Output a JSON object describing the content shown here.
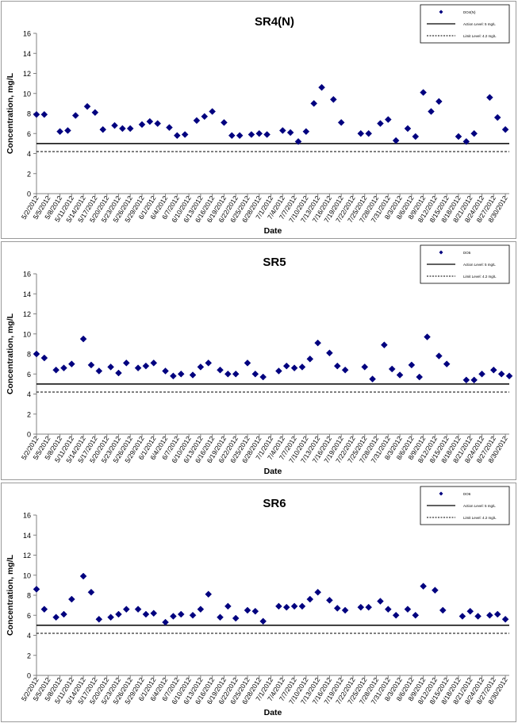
{
  "chart_data": [
    {
      "type": "scatter",
      "title": "SR4(N)",
      "xlabel": "Date",
      "ylabel": "Concentration, mg/L",
      "ylim": [
        0,
        16
      ],
      "yticks": [
        0,
        2,
        4,
        6,
        8,
        10,
        12,
        14,
        16
      ],
      "grid": false,
      "legend_position": "top-right",
      "legend": {
        "series": "DO4(N)",
        "action": "Action Level: 5 mg/L",
        "limit": "Limit Level: 4.2 mg/L"
      },
      "action_level": 5,
      "limit_level": 4.2,
      "tick_labels": [
        "5/2/2012",
        "5/5/2012",
        "5/8/2012",
        "5/11/2012",
        "5/14/2012",
        "5/17/2012",
        "5/20/2012",
        "5/23/2012",
        "5/26/2012",
        "5/29/2012",
        "6/1/2012",
        "6/4/2012",
        "6/7/2012",
        "6/10/2012",
        "6/13/2012",
        "6/16/2012",
        "6/19/2012",
        "6/22/2012",
        "6/25/2012",
        "6/28/2012",
        "7/1/2012",
        "7/4/2012",
        "7/7/2012",
        "7/10/2012",
        "7/13/2012",
        "7/16/2012",
        "7/19/2012",
        "7/22/2012",
        "7/25/2012",
        "7/28/2012",
        "7/31/2012",
        "8/3/2012",
        "8/6/2012",
        "8/9/2012",
        "8/12/2012",
        "8/15/2012",
        "8/18/2012",
        "8/21/2012",
        "8/24/2012",
        "8/27/2012",
        "8/30/2012"
      ],
      "x": [
        "2012-05-02",
        "2012-05-03",
        "2012-05-05",
        "2012-05-06",
        "2012-05-07",
        "2012-05-08",
        "2012-05-09",
        "2012-05-10",
        "2012-05-11",
        "2012-05-12",
        "2012-05-13",
        "2012-05-14",
        "2012-05-15",
        "2012-05-16",
        "2012-05-17",
        "2012-05-18",
        "2012-05-19",
        "2012-05-21",
        "2012-05-22",
        "2012-05-23",
        "2012-05-24",
        "2012-05-25",
        "2012-05-26",
        "2012-05-27",
        "2012-05-28",
        "2012-05-29",
        "2012-05-30",
        "2012-05-31",
        "2012-06-01",
        "2012-06-02",
        "2012-06-03",
        "2012-06-04",
        "2012-06-05",
        "2012-06-06",
        "2012-06-07",
        "2012-06-08",
        "2012-06-09",
        "2012-06-11",
        "2012-06-12",
        "2012-06-13",
        "2012-06-14",
        "2012-06-15",
        "2012-06-16",
        "2012-06-17",
        "2012-06-18",
        "2012-06-19",
        "2012-06-20",
        "2012-06-22",
        "2012-06-23",
        "2012-06-24",
        "2012-06-25",
        "2012-06-26",
        "2012-06-27",
        "2012-06-28",
        "2012-06-29",
        "2012-06-30",
        "2012-07-02",
        "2012-07-03",
        "2012-07-04",
        "2012-07-05",
        "2012-07-06",
        "2012-07-07",
        "2012-07-08",
        "2012-07-09",
        "2012-07-10",
        "2012-07-11",
        "2012-07-12",
        "2012-07-13",
        "2012-07-14",
        "2012-07-15",
        "2012-07-16",
        "2012-07-17",
        "2012-07-18",
        "2012-07-19",
        "2012-07-20",
        "2012-07-21",
        "2012-07-23",
        "2012-07-24",
        "2012-07-25",
        "2012-07-26",
        "2012-07-27",
        "2012-07-28",
        "2012-07-29",
        "2012-07-30",
        "2012-07-31",
        "2012-08-01",
        "2012-08-02",
        "2012-08-03",
        "2012-08-04",
        "2012-08-05",
        "2012-08-06",
        "2012-08-07",
        "2012-08-08",
        "2012-08-09",
        "2012-08-10",
        "2012-08-11",
        "2012-08-12",
        "2012-08-13",
        "2012-08-14",
        "2012-08-15",
        "2012-08-16",
        "2012-08-17",
        "2012-08-18",
        "2012-08-19",
        "2012-08-20",
        "2012-08-21",
        "2012-08-22",
        "2012-08-23",
        "2012-08-24",
        "2012-08-25",
        "2012-08-26",
        "2012-08-27",
        "2012-08-28",
        "2012-08-29",
        "2012-08-30",
        "2012-08-31"
      ],
      "series": [
        {
          "name": "DO4(N)",
          "x": [
            "2012-05-02",
            "2012-05-04",
            "2012-05-08",
            "2012-05-10",
            "2012-05-12",
            "2012-05-15",
            "2012-05-17",
            "2012-05-19",
            "2012-05-22",
            "2012-05-24",
            "2012-05-26",
            "2012-05-29",
            "2012-05-31",
            "2012-06-02",
            "2012-06-05",
            "2012-06-07",
            "2012-06-09",
            "2012-06-12",
            "2012-06-14",
            "2012-06-16",
            "2012-06-19",
            "2012-06-21",
            "2012-06-23",
            "2012-06-26",
            "2012-06-28",
            "2012-06-30",
            "2012-07-04",
            "2012-07-06",
            "2012-07-08",
            "2012-07-10",
            "2012-07-12",
            "2012-07-14",
            "2012-07-17",
            "2012-07-19",
            "2012-07-24",
            "2012-07-26",
            "2012-07-29",
            "2012-07-31",
            "2012-08-02",
            "2012-08-05",
            "2012-08-07",
            "2012-08-09",
            "2012-08-11",
            "2012-08-13",
            "2012-08-18",
            "2012-08-20",
            "2012-08-22",
            "2012-08-26",
            "2012-08-28",
            "2012-08-30"
          ],
          "values": [
            7.9,
            7.9,
            6.2,
            6.3,
            7.8,
            8.7,
            8.1,
            6.4,
            6.8,
            6.5,
            6.5,
            6.9,
            7.2,
            7.0,
            6.6,
            5.8,
            5.9,
            7.3,
            7.7,
            8.2,
            7.1,
            5.8,
            5.8,
            5.9,
            6.0,
            5.9,
            6.3,
            6.1,
            5.2,
            6.2,
            9.0,
            10.6,
            9.4,
            7.1,
            6.0,
            6.0,
            7.0,
            7.4,
            5.3,
            6.5,
            5.7,
            10.1,
            8.2,
            9.2,
            5.7,
            5.2,
            6.0,
            9.6,
            7.6,
            6.4
          ]
        }
      ]
    },
    {
      "type": "scatter",
      "title": "SR5",
      "xlabel": "Date",
      "ylabel": "Concentration, mg/L",
      "ylim": [
        0,
        16
      ],
      "yticks": [
        0,
        2,
        4,
        6,
        8,
        10,
        12,
        14,
        16
      ],
      "grid": false,
      "legend_position": "top-right",
      "legend": {
        "series": "DO5",
        "action": "Action Level: 5 mg/L",
        "limit": "Limit Level: 4.2 mg/L"
      },
      "action_level": 5,
      "limit_level": 4.2,
      "tick_labels": [
        "5/2/2012",
        "5/5/2012",
        "5/8/2012",
        "5/11/2012",
        "5/14/2012",
        "5/17/2012",
        "5/20/2012",
        "5/23/2012",
        "5/26/2012",
        "5/29/2012",
        "6/1/2012",
        "6/4/2012",
        "6/7/2012",
        "6/10/2012",
        "6/13/2012",
        "6/16/2012",
        "6/19/2012",
        "6/22/2012",
        "6/25/2012",
        "6/28/2012",
        "7/1/2012",
        "7/4/2012",
        "7/7/2012",
        "7/10/2012",
        "7/13/2012",
        "7/16/2012",
        "7/19/2012",
        "7/22/2012",
        "7/25/2012",
        "7/28/2012",
        "7/31/2012",
        "8/3/2012",
        "8/6/2012",
        "8/9/2012",
        "8/12/2012",
        "8/15/2012",
        "8/18/2012",
        "8/21/2012",
        "8/24/2012",
        "8/27/2012",
        "8/30/2012"
      ],
      "x": [
        "2012-05-02",
        "2012-05-03",
        "2012-05-05",
        "2012-05-06",
        "2012-05-07",
        "2012-05-08",
        "2012-05-09",
        "2012-05-10",
        "2012-05-11",
        "2012-05-12",
        "2012-05-13",
        "2012-05-14",
        "2012-05-15",
        "2012-05-16",
        "2012-05-17",
        "2012-05-18",
        "2012-05-19",
        "2012-05-21",
        "2012-05-22",
        "2012-05-23",
        "2012-05-24",
        "2012-05-25",
        "2012-05-26",
        "2012-05-27",
        "2012-05-28",
        "2012-05-29",
        "2012-05-30",
        "2012-05-31",
        "2012-06-01",
        "2012-06-02",
        "2012-06-03",
        "2012-06-04",
        "2012-06-05",
        "2012-06-06",
        "2012-06-07",
        "2012-06-08",
        "2012-06-09",
        "2012-06-11",
        "2012-06-12",
        "2012-06-13",
        "2012-06-14",
        "2012-06-15",
        "2012-06-16",
        "2012-06-17",
        "2012-06-18",
        "2012-06-19",
        "2012-06-20",
        "2012-06-22",
        "2012-06-23",
        "2012-06-24",
        "2012-06-25",
        "2012-06-26",
        "2012-06-27",
        "2012-06-28",
        "2012-06-29",
        "2012-06-30",
        "2012-07-02",
        "2012-07-03",
        "2012-07-04",
        "2012-07-05",
        "2012-07-06",
        "2012-07-07",
        "2012-07-08",
        "2012-07-09",
        "2012-07-10",
        "2012-07-11",
        "2012-07-12",
        "2012-07-13",
        "2012-07-14",
        "2012-07-15",
        "2012-07-16",
        "2012-07-17",
        "2012-07-18",
        "2012-07-19",
        "2012-07-20",
        "2012-07-21",
        "2012-07-23",
        "2012-07-24",
        "2012-07-25",
        "2012-07-26",
        "2012-07-27",
        "2012-07-28",
        "2012-07-29",
        "2012-07-30",
        "2012-07-31",
        "2012-08-01",
        "2012-08-02",
        "2012-08-03",
        "2012-08-04",
        "2012-08-05",
        "2012-08-06",
        "2012-08-07",
        "2012-08-08",
        "2012-08-09",
        "2012-08-10",
        "2012-08-11",
        "2012-08-12",
        "2012-08-13",
        "2012-08-14",
        "2012-08-15",
        "2012-08-16",
        "2012-08-17",
        "2012-08-18",
        "2012-08-19",
        "2012-08-20",
        "2012-08-21",
        "2012-08-22",
        "2012-08-23",
        "2012-08-24",
        "2012-08-25",
        "2012-08-26",
        "2012-08-27",
        "2012-08-28",
        "2012-08-29",
        "2012-08-30",
        "2012-08-31"
      ],
      "series": [
        {
          "name": "DO5",
          "x": [
            "2012-05-02",
            "2012-05-04",
            "2012-05-07",
            "2012-05-09",
            "2012-05-11",
            "2012-05-14",
            "2012-05-16",
            "2012-05-18",
            "2012-05-21",
            "2012-05-23",
            "2012-05-25",
            "2012-05-28",
            "2012-05-30",
            "2012-06-01",
            "2012-06-04",
            "2012-06-06",
            "2012-06-08",
            "2012-06-11",
            "2012-06-13",
            "2012-06-15",
            "2012-06-18",
            "2012-06-20",
            "2012-06-22",
            "2012-06-25",
            "2012-06-27",
            "2012-06-29",
            "2012-07-03",
            "2012-07-05",
            "2012-07-07",
            "2012-07-09",
            "2012-07-11",
            "2012-07-13",
            "2012-07-16",
            "2012-07-18",
            "2012-07-20",
            "2012-07-25",
            "2012-07-27",
            "2012-07-30",
            "2012-08-01",
            "2012-08-03",
            "2012-08-06",
            "2012-08-08",
            "2012-08-10",
            "2012-08-13",
            "2012-08-15",
            "2012-08-20",
            "2012-08-22",
            "2012-08-24",
            "2012-08-27",
            "2012-08-29",
            "2012-08-31"
          ],
          "values": [
            8.0,
            7.6,
            6.4,
            6.6,
            7.0,
            9.5,
            6.9,
            6.3,
            6.7,
            6.1,
            7.1,
            6.6,
            6.8,
            7.1,
            6.3,
            5.8,
            6.0,
            5.9,
            6.7,
            7.1,
            6.4,
            6.0,
            6.0,
            7.1,
            6.0,
            5.7,
            6.3,
            6.8,
            6.6,
            6.7,
            7.5,
            9.1,
            8.1,
            6.8,
            6.4,
            6.7,
            5.5,
            8.9,
            6.5,
            5.9,
            6.9,
            5.7,
            9.7,
            7.8,
            7.0,
            5.4,
            5.4,
            6.0,
            6.4,
            6.0,
            5.8
          ]
        }
      ]
    },
    {
      "type": "scatter",
      "title": "SR6",
      "xlabel": "Date",
      "ylabel": "Concentration, mg/L",
      "ylim": [
        0,
        16
      ],
      "yticks": [
        0,
        2,
        4,
        6,
        8,
        10,
        12,
        14,
        16
      ],
      "grid": false,
      "legend_position": "top-right",
      "legend": {
        "series": "DO6",
        "action": "Action Level: 5 mg/L",
        "limit": "Limit Level: 4.2 mg/L"
      },
      "action_level": 5,
      "limit_level": 4.2,
      "tick_labels": [
        "5/2/2012",
        "5/5/2012",
        "5/8/2012",
        "5/11/2012",
        "5/14/2012",
        "5/17/2012",
        "5/20/2012",
        "5/23/2012",
        "5/26/2012",
        "5/29/2012",
        "6/1/2012",
        "6/4/2012",
        "6/7/2012",
        "6/10/2012",
        "6/13/2012",
        "6/16/2012",
        "6/19/2012",
        "6/22/2012",
        "6/25/2012",
        "6/28/2012",
        "7/1/2012",
        "7/4/2012",
        "7/7/2012",
        "7/10/2012",
        "7/13/2012",
        "7/16/2012",
        "7/19/2012",
        "7/22/2012",
        "7/25/2012",
        "7/28/2012",
        "7/31/2012",
        "8/3/2012",
        "8/6/2012",
        "8/9/2012",
        "8/12/2012",
        "8/15/2012",
        "8/18/2012",
        "8/21/2012",
        "8/24/2012",
        "8/27/2012",
        "8/30/2012"
      ],
      "x": [
        "2012-05-02",
        "2012-05-03",
        "2012-05-05",
        "2012-05-06",
        "2012-05-07",
        "2012-05-08",
        "2012-05-09",
        "2012-05-10",
        "2012-05-11",
        "2012-05-12",
        "2012-05-13",
        "2012-05-14",
        "2012-05-15",
        "2012-05-16",
        "2012-05-17",
        "2012-05-18",
        "2012-05-19",
        "2012-05-21",
        "2012-05-22",
        "2012-05-23",
        "2012-05-24",
        "2012-05-25",
        "2012-05-26",
        "2012-05-27",
        "2012-05-28",
        "2012-05-29",
        "2012-05-30",
        "2012-05-31",
        "2012-06-01",
        "2012-06-02",
        "2012-06-03",
        "2012-06-04",
        "2012-06-05",
        "2012-06-06",
        "2012-06-07",
        "2012-06-08",
        "2012-06-09",
        "2012-06-11",
        "2012-06-12",
        "2012-06-13",
        "2012-06-14",
        "2012-06-15",
        "2012-06-16",
        "2012-06-17",
        "2012-06-18",
        "2012-06-19",
        "2012-06-20",
        "2012-06-22",
        "2012-06-23",
        "2012-06-24",
        "2012-06-25",
        "2012-06-26",
        "2012-06-27",
        "2012-06-28",
        "2012-06-29",
        "2012-06-30",
        "2012-07-02",
        "2012-07-03",
        "2012-07-04",
        "2012-07-05",
        "2012-07-06",
        "2012-07-07",
        "2012-07-08",
        "2012-07-09",
        "2012-07-10",
        "2012-07-11",
        "2012-07-12",
        "2012-07-13",
        "2012-07-14",
        "2012-07-15",
        "2012-07-16",
        "2012-07-17",
        "2012-07-18",
        "2012-07-19",
        "2012-07-20",
        "2012-07-21",
        "2012-07-23",
        "2012-07-24",
        "2012-07-25",
        "2012-07-26",
        "2012-07-27",
        "2012-07-28",
        "2012-07-29",
        "2012-07-30",
        "2012-07-31",
        "2012-08-01",
        "2012-08-02",
        "2012-08-03",
        "2012-08-04",
        "2012-08-05",
        "2012-08-06",
        "2012-08-07",
        "2012-08-08",
        "2012-08-09",
        "2012-08-10",
        "2012-08-11",
        "2012-08-12",
        "2012-08-13",
        "2012-08-14",
        "2012-08-15",
        "2012-08-16",
        "2012-08-17",
        "2012-08-18",
        "2012-08-19",
        "2012-08-20",
        "2012-08-21",
        "2012-08-22",
        "2012-08-23",
        "2012-08-24",
        "2012-08-25",
        "2012-08-26",
        "2012-08-27",
        "2012-08-28",
        "2012-08-29",
        "2012-08-30",
        "2012-08-31"
      ],
      "series": [
        {
          "name": "DO6",
          "x": [
            "2012-05-02",
            "2012-05-04",
            "2012-05-07",
            "2012-05-09",
            "2012-05-11",
            "2012-05-14",
            "2012-05-16",
            "2012-05-18",
            "2012-05-21",
            "2012-05-23",
            "2012-05-25",
            "2012-05-28",
            "2012-05-30",
            "2012-06-01",
            "2012-06-04",
            "2012-06-06",
            "2012-06-08",
            "2012-06-11",
            "2012-06-13",
            "2012-06-15",
            "2012-06-18",
            "2012-06-20",
            "2012-06-22",
            "2012-06-25",
            "2012-06-27",
            "2012-06-29",
            "2012-07-03",
            "2012-07-05",
            "2012-07-07",
            "2012-07-09",
            "2012-07-11",
            "2012-07-13",
            "2012-07-16",
            "2012-07-18",
            "2012-07-20",
            "2012-07-24",
            "2012-07-26",
            "2012-07-29",
            "2012-07-31",
            "2012-08-02",
            "2012-08-05",
            "2012-08-07",
            "2012-08-09",
            "2012-08-12",
            "2012-08-14",
            "2012-08-19",
            "2012-08-21",
            "2012-08-23",
            "2012-08-26",
            "2012-08-28",
            "2012-08-30"
          ],
          "values": [
            8.6,
            6.6,
            5.8,
            6.1,
            7.6,
            9.9,
            8.3,
            5.6,
            5.8,
            6.1,
            6.6,
            6.6,
            6.1,
            6.2,
            5.3,
            5.9,
            6.1,
            6.0,
            6.6,
            8.1,
            5.8,
            6.9,
            5.7,
            6.5,
            6.4,
            5.4,
            6.9,
            6.8,
            6.9,
            6.9,
            7.6,
            8.3,
            7.5,
            6.7,
            6.5,
            6.8,
            6.8,
            7.4,
            6.6,
            6.0,
            6.6,
            6.0,
            8.9,
            8.5,
            6.5,
            5.9,
            6.4,
            5.9,
            6.0,
            6.1,
            5.6
          ]
        }
      ]
    }
  ]
}
